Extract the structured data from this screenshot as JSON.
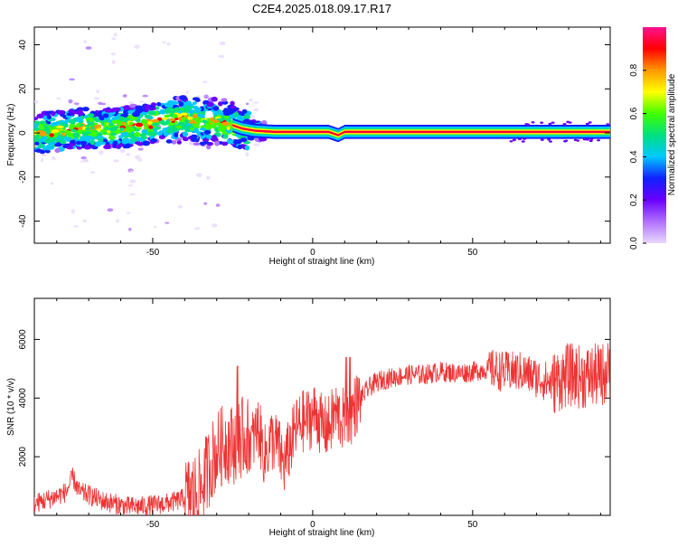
{
  "title": "C2E4.2025.018.09.17.R17",
  "colors": {
    "line": "#ee3333",
    "ridge": "#ff0033",
    "colormap": [
      "#e8d8ff",
      "#b070ff",
      "#6a00ff",
      "#1020ff",
      "#00c8ff",
      "#00e080",
      "#40ff00",
      "#ffff00",
      "#ff9900",
      "#ff0000",
      "#ff1090"
    ]
  },
  "chart_data": [
    {
      "type": "heatmap",
      "xlabel": "Height of straight line (km)",
      "ylabel": "Frequency (Hz)",
      "xlim": [
        -87,
        93
      ],
      "ylim": [
        -50,
        48
      ],
      "xticks": [
        -50,
        0,
        50
      ],
      "yticks": [
        -40,
        -20,
        0,
        20,
        40
      ],
      "colorbar": {
        "label": "Normalized spectral amplitude",
        "range": [
          0,
          1
        ],
        "ticks": [
          0.0,
          0.2,
          0.4,
          0.6,
          0.8
        ]
      },
      "ridge": {
        "x": [
          -87,
          -80,
          -72,
          -65,
          -58,
          -52,
          -46,
          -40,
          -35,
          -30,
          -26,
          -22,
          -18,
          -12,
          -5,
          0,
          5,
          8,
          10,
          20,
          40,
          60,
          80,
          93
        ],
        "freq": [
          0,
          1,
          2,
          2,
          3,
          4,
          6,
          7,
          5,
          5,
          4,
          2,
          1,
          0.5,
          0.5,
          0.5,
          0.5,
          -1,
          0.5,
          0.5,
          0.5,
          0.5,
          0.5,
          0.5
        ]
      }
    },
    {
      "type": "line",
      "xlabel": "Height of straight line (km)",
      "ylabel": "SNR (10 * v/v)",
      "xlim": [
        -87,
        93
      ],
      "ylim": [
        0,
        7400
      ],
      "xticks": [
        -50,
        0,
        50
      ],
      "yticks": [
        2000,
        4000,
        6000
      ],
      "series": [
        {
          "x": [
            -87,
            -84,
            -80,
            -77,
            -75,
            -73,
            -70,
            -66,
            -62,
            -58,
            -54,
            -50,
            -46,
            -42,
            -38,
            -35,
            -33,
            -31,
            -29,
            -27,
            -25,
            -23,
            -21,
            -19,
            -17,
            -15,
            -13,
            -11,
            -9,
            -7,
            -5,
            -3,
            -1,
            1,
            3,
            5,
            7,
            9,
            11,
            13,
            15,
            18,
            21,
            25,
            30,
            35,
            40,
            45,
            50,
            55,
            60,
            65,
            70,
            75,
            80,
            85,
            90,
            93
          ],
          "y": [
            400,
            500,
            650,
            800,
            1300,
            800,
            700,
            500,
            400,
            300,
            300,
            350,
            400,
            500,
            700,
            900,
            1500,
            2000,
            2300,
            2500,
            2400,
            2600,
            2700,
            2500,
            3000,
            2000,
            2600,
            2400,
            1700,
            2400,
            3000,
            3200,
            3300,
            3500,
            3000,
            3000,
            3500,
            3300,
            3200,
            3700,
            4000,
            4400,
            4600,
            4700,
            4800,
            4800,
            4900,
            4850,
            4900,
            5000,
            4900,
            4900,
            4700,
            4500,
            4800,
            4700,
            4800,
            4900
          ]
        }
      ]
    }
  ]
}
